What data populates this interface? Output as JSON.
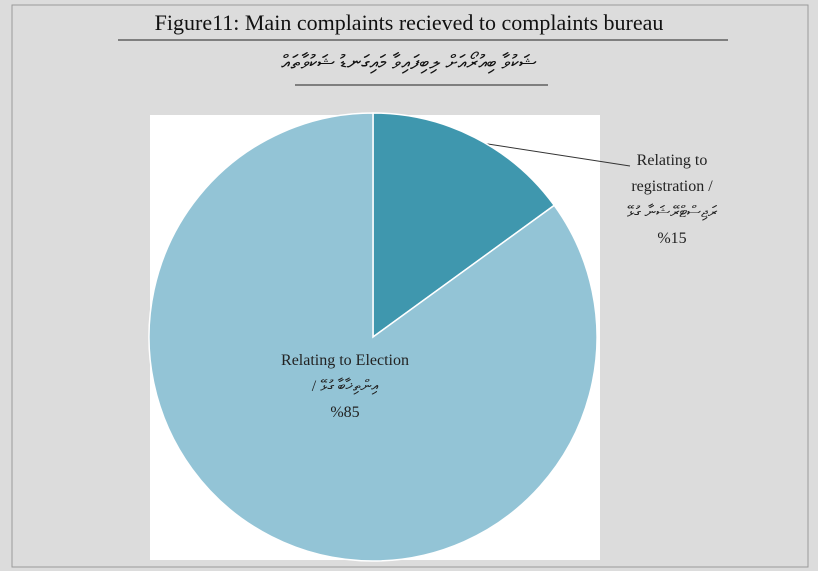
{
  "chart_data": {
    "type": "pie",
    "title": "Figure11: Main complaints recieved to complaints bureau",
    "subtitle": "ޝަކުވާ ބިއުރޯއަށް ލިބިފައިވާ މައިގަނޑު ޝަކުވާތައް",
    "categories": [
      "Relating to registration / ރަޖިސްޓްރޭޝަނާ ގުޅޭ",
      "Relating to Election / އިންތިޚާބާ ގުޅޭ"
    ],
    "values": [
      15,
      85
    ],
    "value_labels": [
      "%15",
      "%85"
    ],
    "colors": [
      "#3f97ae",
      "#93c4d6"
    ]
  }
}
